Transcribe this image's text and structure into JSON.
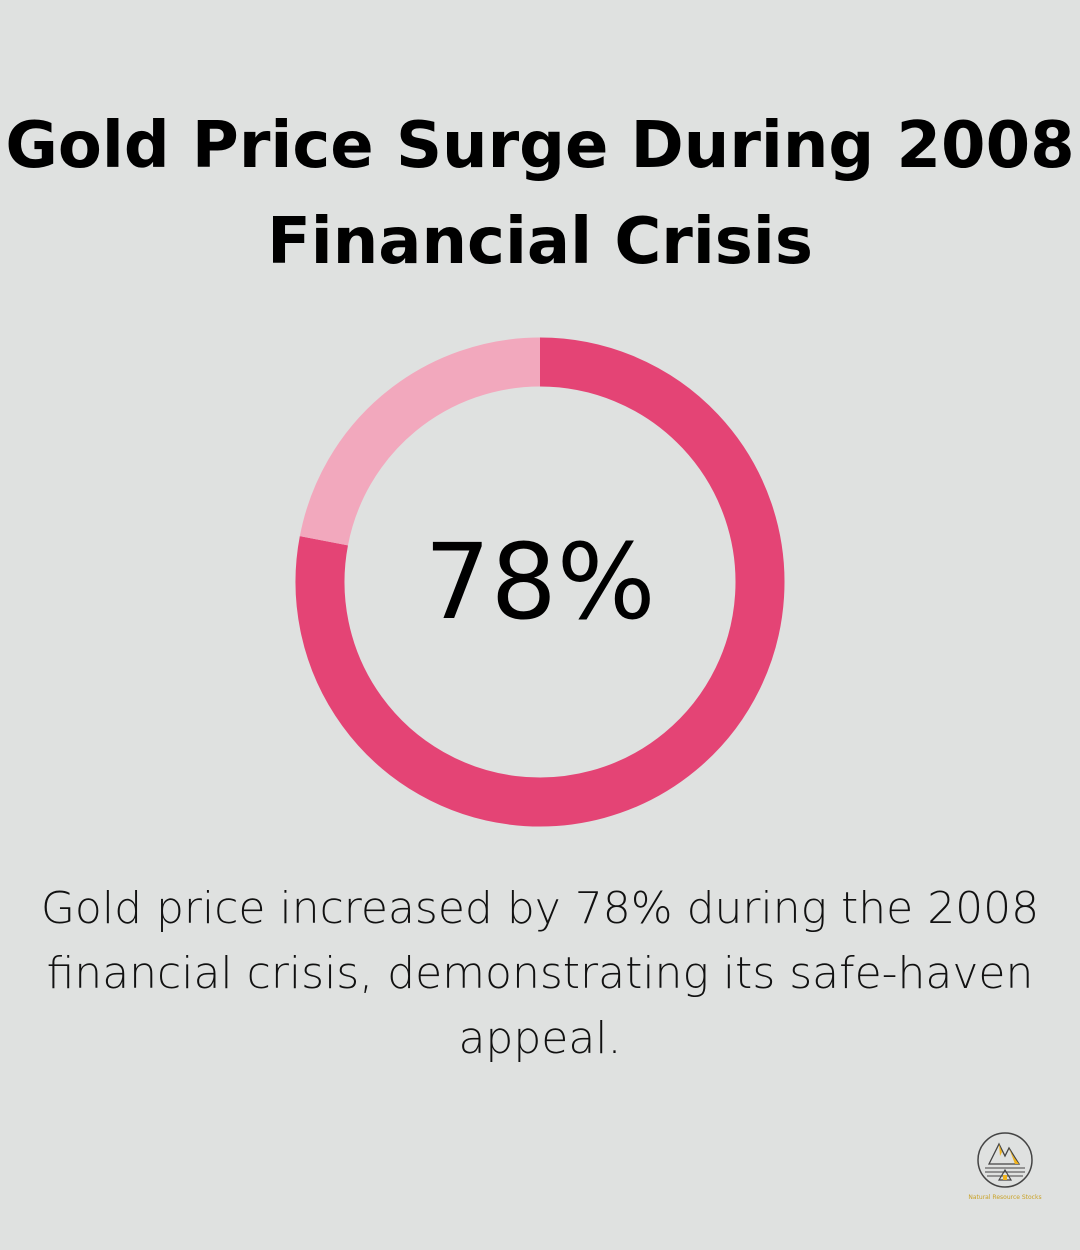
{
  "chart_data": {
    "type": "pie",
    "variant": "donut",
    "title": "Gold Price Surge During 2008 Financial Crisis",
    "center_label": "78%",
    "values": [
      78,
      22
    ],
    "colors": [
      "#e44475",
      "#f2a8bd"
    ],
    "description": "Gold price increased by 78% during the 2008 financial crisis, demonstrating its safe-haven appeal."
  },
  "logo": {
    "text": "Natural Resource Stocks",
    "icon": "mountain-forest-cabin-logo"
  }
}
